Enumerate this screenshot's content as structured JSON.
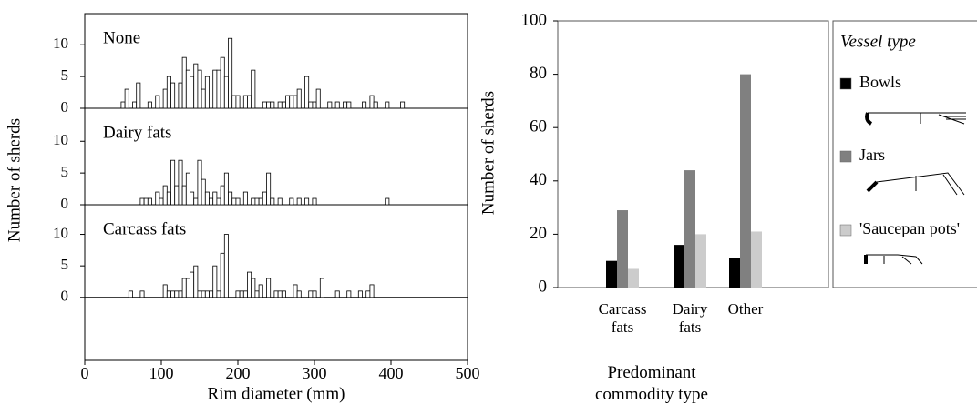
{
  "chart_data": [
    {
      "type": "histogram",
      "label": "None",
      "xlim": [
        0,
        500
      ],
      "ylim": [
        0,
        14.9
      ],
      "yticks": [
        0,
        5,
        10
      ],
      "x": [
        50,
        55,
        65,
        70,
        85,
        95,
        105,
        110,
        115,
        125,
        130,
        135,
        140,
        145,
        150,
        155,
        160,
        170,
        175,
        180,
        185,
        190,
        195,
        200,
        210,
        215,
        220,
        235,
        240,
        245,
        255,
        260,
        265,
        270,
        275,
        280,
        290,
        295,
        300,
        305,
        320,
        330,
        340,
        345,
        365,
        375,
        380,
        395,
        415
      ],
      "values": [
        1,
        3,
        1,
        4,
        1,
        2,
        3,
        5,
        4,
        4,
        8,
        6,
        5,
        7,
        6,
        3,
        5,
        6,
        6,
        8,
        5,
        11,
        2,
        2,
        2,
        2,
        6,
        1,
        1,
        1,
        1,
        1,
        2,
        2,
        2,
        3,
        5,
        1,
        1,
        3,
        1,
        1,
        1,
        1,
        1,
        2,
        1,
        1,
        1
      ]
    },
    {
      "type": "histogram",
      "label": "Dairy fats",
      "xlim": [
        0,
        500
      ],
      "ylim": [
        0,
        15.2
      ],
      "yticks": [
        0,
        5,
        10
      ],
      "y_label": "Number of sherds",
      "x": [
        75,
        80,
        85,
        95,
        100,
        105,
        110,
        115,
        120,
        125,
        130,
        135,
        140,
        145,
        150,
        155,
        160,
        165,
        170,
        175,
        180,
        185,
        190,
        195,
        200,
        210,
        220,
        225,
        230,
        235,
        240,
        245,
        255,
        270,
        280,
        290,
        300,
        395
      ],
      "values": [
        1,
        1,
        1,
        2,
        1,
        3,
        2,
        7,
        3,
        7,
        3,
        5,
        2,
        1,
        7,
        4,
        2,
        1,
        2,
        1,
        3,
        5,
        2,
        1,
        1,
        2,
        1,
        1,
        1,
        2,
        5,
        1,
        1,
        1,
        1,
        1,
        1,
        1
      ]
    },
    {
      "type": "histogram",
      "label": "Carcass fats",
      "xlim": [
        0,
        500
      ],
      "ylim": [
        -10,
        14.7
      ],
      "yticks": [
        0,
        5,
        10
      ],
      "xticks": [
        0,
        100,
        200,
        300,
        400,
        500
      ],
      "x_label": "Rim diameter (mm)",
      "x": [
        60,
        75,
        105,
        110,
        115,
        120,
        125,
        130,
        135,
        140,
        145,
        150,
        155,
        160,
        165,
        170,
        175,
        180,
        185,
        200,
        205,
        210,
        215,
        220,
        225,
        230,
        240,
        250,
        255,
        260,
        275,
        280,
        295,
        300,
        310,
        330,
        345,
        360,
        370,
        375
      ],
      "values": [
        1,
        1,
        2,
        1,
        1,
        1,
        1,
        3,
        3,
        4,
        5,
        1,
        1,
        1,
        1,
        5,
        1,
        7,
        10,
        1,
        1,
        1,
        4,
        3,
        1,
        2,
        3,
        1,
        1,
        1,
        2,
        1,
        1,
        1,
        3,
        1,
        1,
        1,
        1,
        2
      ]
    },
    {
      "type": "bar",
      "categories": [
        "Carcass fats",
        "Dairy fats",
        "Other"
      ],
      "ylim": [
        0,
        100
      ],
      "yticks": [
        0,
        20,
        40,
        60,
        80,
        100
      ],
      "y_label": "Number of sherds",
      "x_label": "Predominant commodity type",
      "legend_title": "Vessel type",
      "series": [
        {
          "name": "Bowls",
          "color": "#000000",
          "values": [
            10,
            16,
            11
          ]
        },
        {
          "name": "Jars",
          "color": "#808080",
          "values": [
            29,
            44,
            80
          ]
        },
        {
          "name": "'Saucepan pots'",
          "color": "#cccccc",
          "values": [
            7,
            20,
            21
          ]
        }
      ]
    }
  ]
}
